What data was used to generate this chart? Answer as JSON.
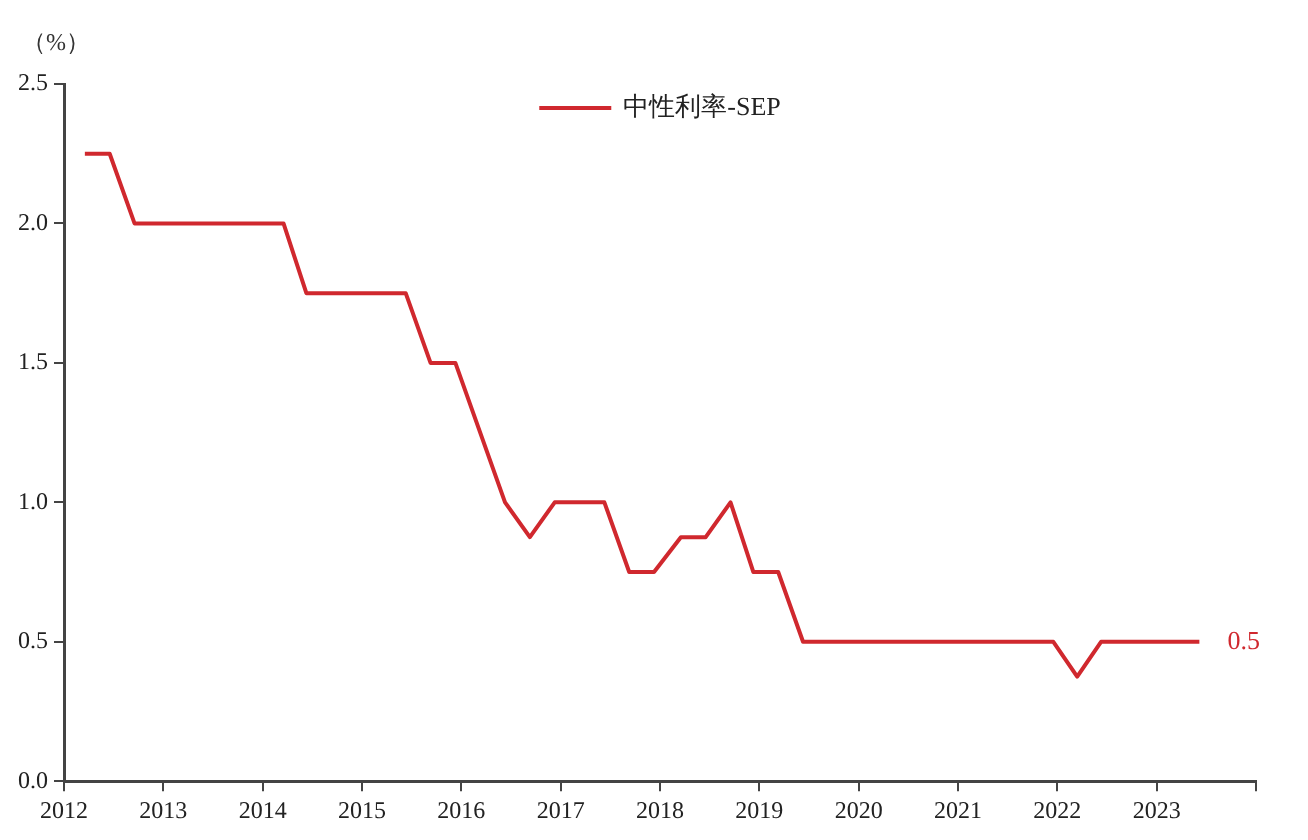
{
  "chart_data": {
    "type": "line",
    "ylabel": "（%）",
    "x": [
      2012.21,
      2012.46,
      2012.71,
      2014.21,
      2014.44,
      2015.44,
      2015.69,
      2015.94,
      2016.44,
      2016.69,
      2016.94,
      2017.44,
      2017.69,
      2017.94,
      2018.21,
      2018.46,
      2018.71,
      2018.94,
      2019.19,
      2019.44,
      2021.96,
      2022.2,
      2022.44,
      2023.43
    ],
    "series": [
      {
        "name": "中性利率-SEP",
        "color": "#d0282e",
        "values": [
          2.25,
          2.25,
          2.0,
          2.0,
          1.75,
          1.75,
          1.5,
          1.5,
          1.0,
          0.875,
          1.0,
          1.0,
          0.75,
          0.75,
          0.875,
          0.875,
          1.0,
          0.75,
          0.75,
          0.5,
          0.5,
          0.375,
          0.5,
          0.5
        ]
      }
    ],
    "xlim": [
      2012,
      2024
    ],
    "xticks": [
      2012,
      2013,
      2014,
      2015,
      2016,
      2017,
      2018,
      2019,
      2020,
      2021,
      2022,
      2023,
      {
        "value": 2024,
        "label": null
      }
    ],
    "ylim": [
      0,
      2.5
    ],
    "yticks": [
      {
        "value": 0,
        "label": "0.0"
      },
      0.5,
      {
        "value": 1,
        "label": "1.0"
      },
      1.5,
      {
        "value": 2,
        "label": "2.0"
      },
      2.5
    ],
    "annotations": [
      {
        "text": "0.5",
        "x": 2023.43,
        "y": 0.5
      }
    ],
    "grid": false,
    "legend": "top",
    "marker": "none",
    "line_style": "solid"
  }
}
